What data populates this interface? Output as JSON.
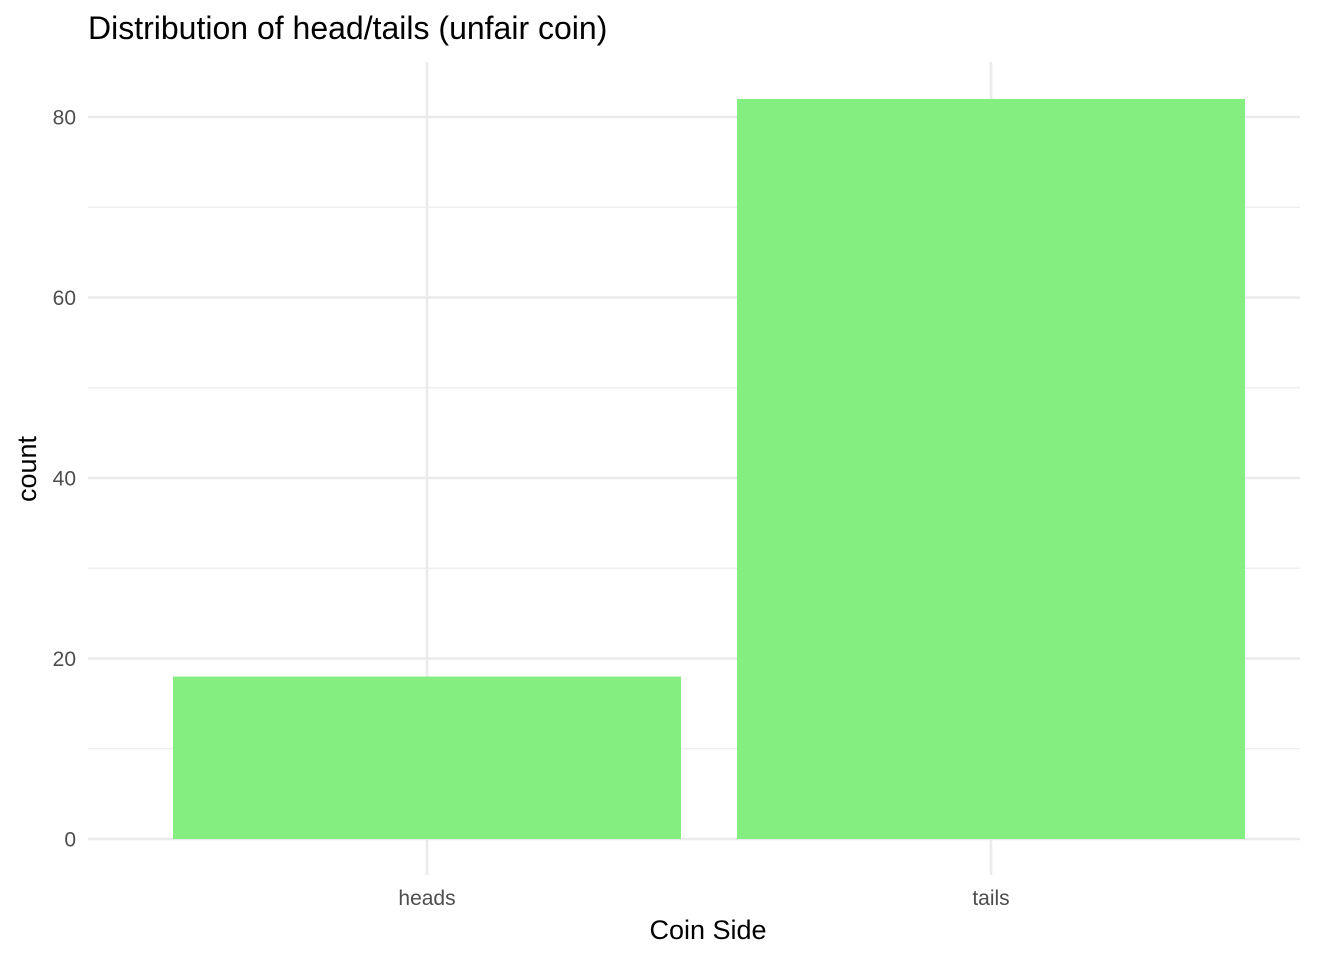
{
  "chart_data": {
    "type": "bar",
    "title": "Distribution of head/tails (unfair coin)",
    "xlabel": "Coin Side",
    "ylabel": "count",
    "categories": [
      "heads",
      "tails"
    ],
    "values": [
      18,
      82
    ],
    "ylim": [
      0,
      86
    ],
    "yticks": [
      0,
      20,
      40,
      60,
      80
    ],
    "yticks_minor": [
      10,
      30,
      50,
      70
    ],
    "grid": true,
    "legend": "none",
    "bar_color": "#84EE80",
    "grid_color": "#EBEBEB"
  }
}
